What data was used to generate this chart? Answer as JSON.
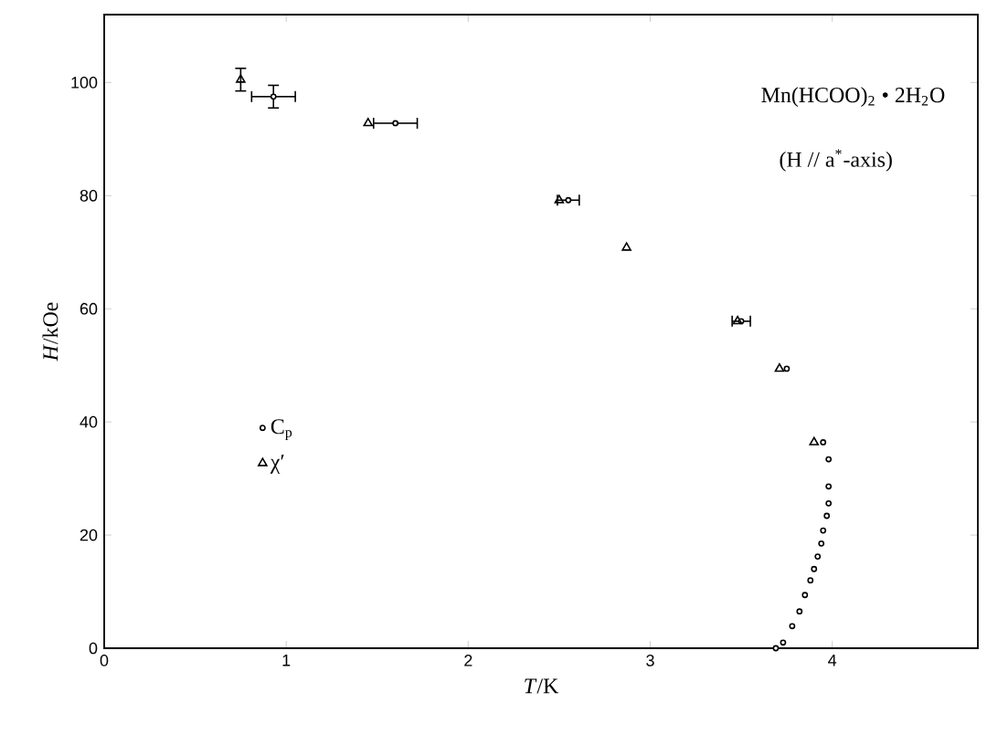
{
  "chart_data": {
    "type": "scatter",
    "xlabel": "*T*/K",
    "ylabel": "*H*/kOe",
    "annotations": [
      "Mn(HCOO)$_{2}$ • 2H$_{2}$O",
      "(H // a$^{*}$-axis)"
    ],
    "xlim": [
      0,
      4.8
    ],
    "ylim": [
      0,
      112
    ],
    "xticks": [
      0,
      1,
      2,
      3,
      4
    ],
    "yticks": [
      0,
      20,
      40,
      60,
      80,
      100
    ],
    "grid": false,
    "legend": "left",
    "series": [
      {
        "name": "C$_{p}$",
        "color": "#000000",
        "marker": "circle",
        "x": [
          0.93,
          1.6,
          2.55,
          3.5,
          3.75,
          3.95,
          3.98,
          3.98,
          3.98,
          3.97,
          3.95,
          3.94,
          3.92,
          3.9,
          3.88,
          3.85,
          3.82,
          3.78,
          3.73,
          3.69
        ],
        "values": [
          97.5,
          92.8,
          79.2,
          57.8,
          49.4,
          36.4,
          33.4,
          28.6,
          25.6,
          23.4,
          20.8,
          18.5,
          16.2,
          14,
          12,
          9.4,
          6.5,
          3.9,
          1,
          0
        ],
        "errors": [
          2,
          null,
          null,
          null,
          null,
          null,
          null,
          null,
          null,
          null,
          null,
          null,
          null,
          null,
          null,
          null,
          null,
          null,
          null,
          null
        ],
        "xerrors": [
          0.12,
          0.12,
          0.06,
          0.05,
          null,
          null,
          null,
          null,
          null,
          null,
          null,
          null,
          null,
          null,
          null,
          null,
          null,
          null,
          null,
          null
        ]
      },
      {
        "name": "χ′",
        "color": "#000000",
        "marker": "triangle",
        "x": [
          0.75,
          1.45,
          2.5,
          2.87,
          3.48,
          3.71,
          3.9
        ],
        "values": [
          100.5,
          92.8,
          79.2,
          70.8,
          57.8,
          49.4,
          36.4
        ],
        "errors": [
          2,
          null,
          null,
          null,
          null,
          null,
          null
        ]
      }
    ]
  }
}
